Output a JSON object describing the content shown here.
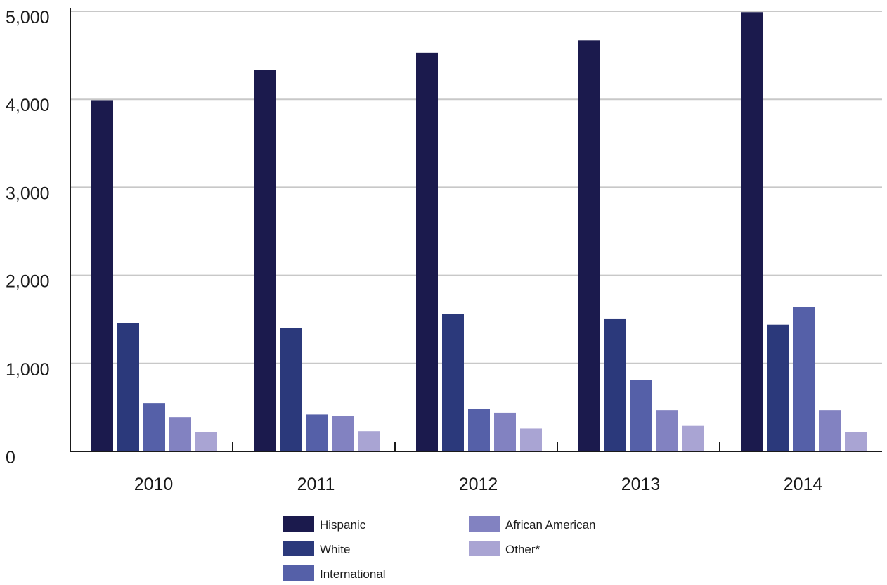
{
  "chart_data": {
    "type": "bar",
    "categories": [
      "2010",
      "2011",
      "2012",
      "2013",
      "2014"
    ],
    "series": [
      {
        "name": "Hispanic",
        "color": "#1b1a4d",
        "values": [
          3990,
          4330,
          4530,
          4670,
          4990
        ]
      },
      {
        "name": "White",
        "color": "#2b397b",
        "values": [
          1460,
          1400,
          1560,
          1510,
          1440
        ]
      },
      {
        "name": "International",
        "color": "#5560a8",
        "values": [
          550,
          420,
          480,
          810,
          1640
        ]
      },
      {
        "name": "African American",
        "color": "#8282c1",
        "values": [
          390,
          400,
          440,
          470,
          470
        ]
      },
      {
        "name": "Other*",
        "color": "#a9a4d3",
        "values": [
          220,
          230,
          260,
          290,
          220
        ]
      }
    ],
    "y_ticks": [
      "0",
      "1,000",
      "2,000",
      "3,000",
      "4,000",
      "5,000"
    ],
    "ylim": [
      0,
      5000
    ],
    "grid": true,
    "legend": "bottom-center",
    "title": "",
    "xlabel": "",
    "ylabel": ""
  }
}
